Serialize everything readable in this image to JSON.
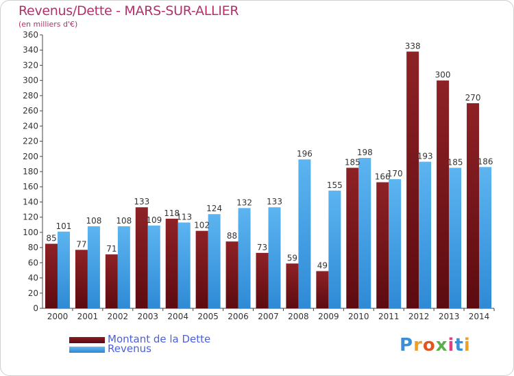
{
  "chart_data": {
    "type": "bar",
    "title": "Revenus/Dette - MARS-SUR-ALLIER",
    "subtitle": "(en milliers d'€)",
    "categories": [
      "2000",
      "2001",
      "2002",
      "2003",
      "2004",
      "2005",
      "2006",
      "2007",
      "2008",
      "2009",
      "2010",
      "2011",
      "2012",
      "2013",
      "2014"
    ],
    "series": [
      {
        "name": "Montant de la Dette",
        "values": [
          85,
          77,
          71,
          133,
          118,
          102,
          88,
          73,
          59,
          49,
          185,
          166,
          338,
          300,
          270
        ]
      },
      {
        "name": "Revenus",
        "values": [
          101,
          108,
          108,
          109,
          113,
          124,
          132,
          133,
          196,
          155,
          198,
          170,
          193,
          185,
          186
        ]
      }
    ],
    "ylim": [
      0,
      360
    ],
    "ytick_step": 20,
    "grid": false,
    "legend_position": "bottom-left",
    "colors": {
      "Montant de la Dette": "#7a1418",
      "Revenus": "#3a9ae0"
    }
  },
  "branding": {
    "logo_text": "Proxiti"
  }
}
